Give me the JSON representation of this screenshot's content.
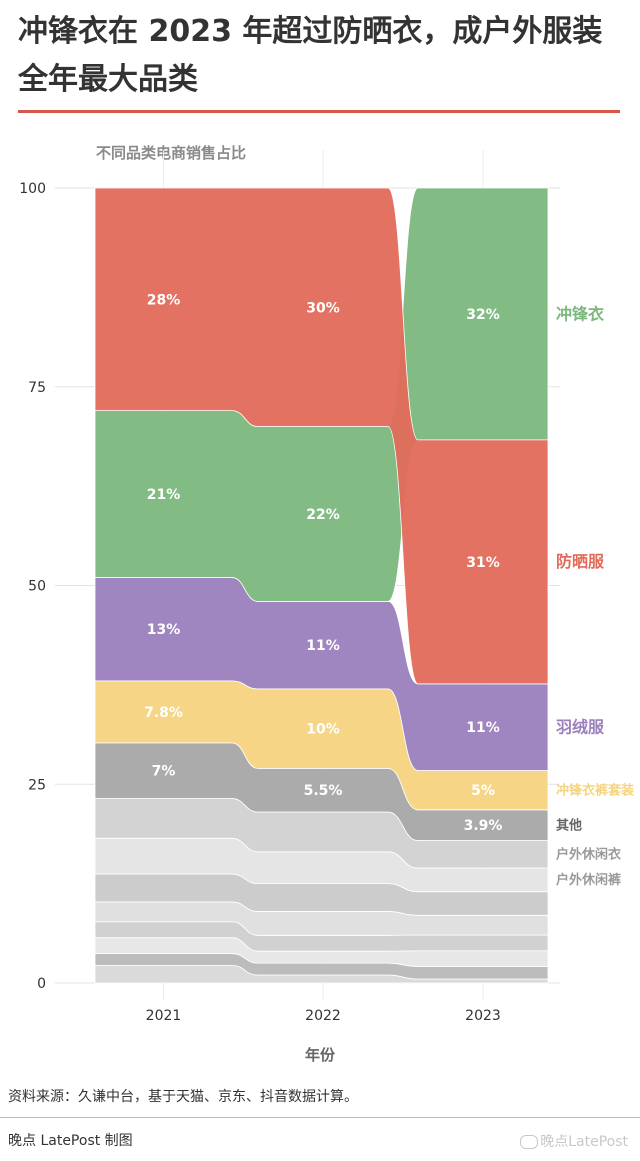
{
  "title": "冲锋衣在 2023 年超过防晒衣，成户外服装全年最大品类",
  "subtitle": "不同品类电商销售占比",
  "source": "资料来源：久谦中台，基于天猫、京东、抖音数据计算。",
  "credit": "晚点 LatePost 制图",
  "watermark": "晚点LatePost",
  "colors": {
    "冲锋衣": "#7cb77e",
    "防晒服": "#e26a5b",
    "羽绒服": "#9b80bd",
    "冲锋衣裤套装": "#f6d47f",
    "其他": "#a6a6a6",
    "户外休闲衣": "#d1d1d1",
    "户外休闲裤": "#e4e4e4",
    "accent": "#d65749"
  },
  "chart_data": {
    "type": "area",
    "title": "不同品类电商销售占比",
    "xlabel": "年份",
    "ylabel": "",
    "x": [
      "2021",
      "2022",
      "2023"
    ],
    "ylim": [
      0,
      100
    ],
    "yticks": [
      0,
      25,
      50,
      75,
      100
    ],
    "series": [
      {
        "name": "冲锋衣",
        "values": [
          21,
          22,
          32
        ],
        "labels": [
          "21%",
          "22%",
          "32%"
        ],
        "rank": [
          2,
          2,
          1
        ]
      },
      {
        "name": "防晒服",
        "values": [
          28,
          30,
          31
        ],
        "labels": [
          "28%",
          "30%",
          "31%"
        ],
        "rank": [
          1,
          1,
          2
        ]
      },
      {
        "name": "羽绒服",
        "values": [
          13,
          11,
          11
        ],
        "labels": [
          "13%",
          "11%",
          "11%"
        ],
        "rank": [
          3,
          3,
          3
        ]
      },
      {
        "name": "冲锋衣裤套装",
        "values": [
          7.8,
          10,
          5
        ],
        "labels": [
          "7.8%",
          "10%",
          "5%"
        ],
        "rank": [
          4,
          4,
          4
        ]
      },
      {
        "name": "其他",
        "values": [
          7,
          5.5,
          3.9
        ],
        "labels": [
          "7%",
          "5.5%",
          "3.9%"
        ],
        "rank": [
          5,
          5,
          5
        ]
      },
      {
        "name": "户外休闲衣",
        "values": [
          5,
          5,
          3.5
        ],
        "labels": [
          "",
          "",
          ""
        ],
        "rank": [
          6,
          6,
          6
        ]
      },
      {
        "name": "户外休闲裤",
        "values": [
          4.5,
          4,
          3
        ],
        "labels": [
          "",
          "",
          ""
        ],
        "rank": [
          7,
          7,
          7
        ]
      },
      {
        "name": "",
        "values": [
          3.5,
          3.5,
          3
        ],
        "labels": [
          "",
          "",
          ""
        ],
        "rank": [
          8,
          8,
          8
        ]
      },
      {
        "name": "",
        "values": [
          2.5,
          3,
          2.5
        ],
        "labels": [
          "",
          "",
          ""
        ],
        "rank": [
          9,
          9,
          9
        ]
      },
      {
        "name": "",
        "values": [
          2,
          2,
          2
        ],
        "labels": [
          "",
          "",
          ""
        ],
        "rank": [
          10,
          10,
          10
        ]
      },
      {
        "name": "",
        "values": [
          2,
          1.5,
          2
        ],
        "labels": [
          "",
          "",
          ""
        ],
        "rank": [
          11,
          11,
          11
        ]
      },
      {
        "name": "",
        "values": [
          1.5,
          1.5,
          1.6
        ],
        "labels": [
          "",
          "",
          ""
        ],
        "rank": [
          12,
          12,
          12
        ]
      },
      {
        "name": "",
        "values": [
          2.2,
          1,
          0.5
        ],
        "labels": [
          "",
          "",
          ""
        ],
        "rank": [
          13,
          13,
          13
        ]
      }
    ],
    "legend": [
      "冲锋衣",
      "防晒服",
      "羽绒服",
      "冲锋衣裤套装",
      "其他",
      "户外休闲衣",
      "户外休闲裤"
    ],
    "legend_placement": "right"
  }
}
